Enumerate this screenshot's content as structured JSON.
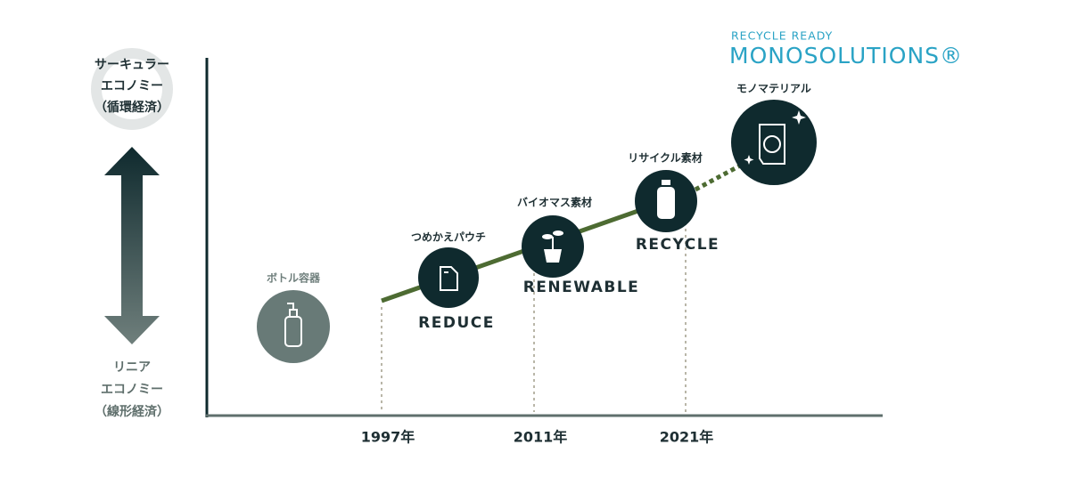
{
  "brand": {
    "tagline": "RECYCLE READY",
    "name": "MONOSOLUTIONS®"
  },
  "y_axis": {
    "top": [
      "サーキュラー",
      "エコノミー",
      "（循環経済）"
    ],
    "bottom": [
      "リニア",
      "エコノミー",
      "（線形経済）"
    ]
  },
  "x_axis": {
    "labels": [
      "1997年",
      "2011年",
      "2021年"
    ]
  },
  "stages": [
    {
      "label": "ボトル容器"
    },
    {
      "label": "つめかえパウチ",
      "keyword": "REDUCE"
    },
    {
      "label": "バイオマス素材",
      "keyword": "RENEWABLE"
    },
    {
      "label": "リサイクル素材",
      "keyword": "RECYCLE"
    },
    {
      "label": "モノマテリアル"
    }
  ]
}
